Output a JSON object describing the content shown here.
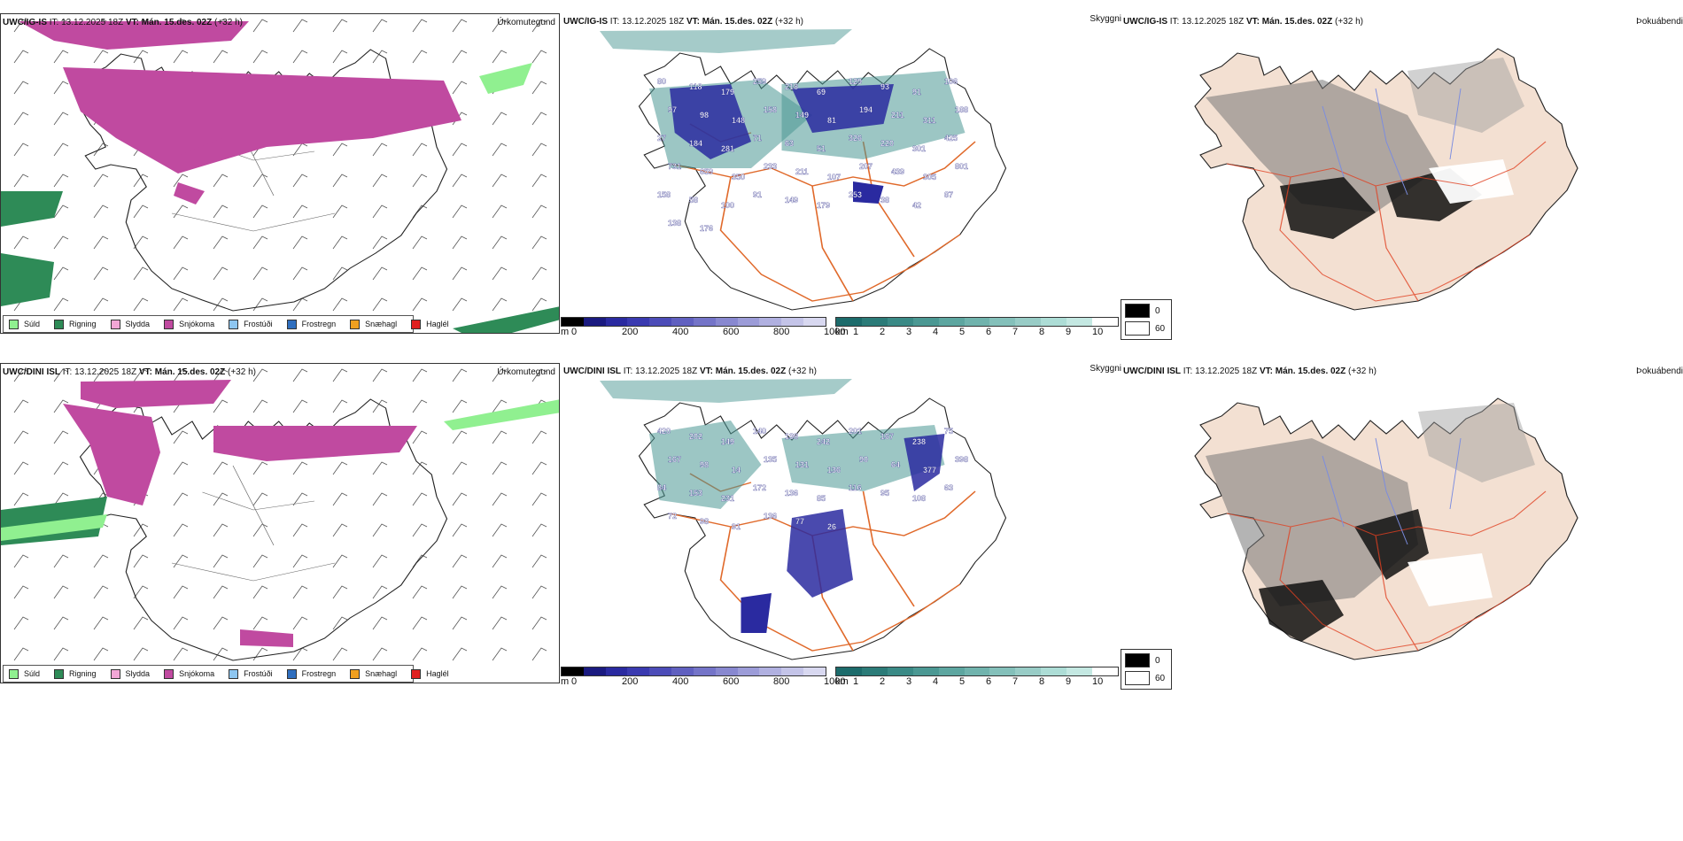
{
  "rows": [
    {
      "precip": {
        "model": "UWC/IG-IS",
        "it_label": "IT:",
        "it": "13.12.2025 18Z",
        "vt_label": "VT:",
        "vt": "Mán. 15.des. 02Z",
        "lead": "(+32 h)",
        "product": "Úrkomutegund"
      },
      "cloud": {
        "model": "UWC/IG-IS",
        "it_label": "IT:",
        "it": "13.12.2025 18Z",
        "vt_label": "VT:",
        "vt": "Mán. 15.des. 02Z",
        "lead": "(+32 h)",
        "product": "Skyggni",
        "labels": [
          "80",
          "118",
          "179",
          "259",
          "218",
          "69",
          "129",
          "93",
          "91",
          "106",
          "97",
          "98",
          "148",
          "158",
          "149",
          "81",
          "194",
          "211",
          "311",
          "188",
          "27",
          "184",
          "281",
          "71",
          "63",
          "51",
          "326",
          "220",
          "301",
          "425",
          "731",
          "659",
          "350",
          "233",
          "211",
          "107",
          "207",
          "439",
          "305",
          "801",
          "158",
          "58",
          "100",
          "91",
          "149",
          "179",
          "253",
          "38",
          "42",
          "87",
          "138",
          "176"
        ]
      },
      "fog": {
        "model": "UWC/IG-IS",
        "it_label": "IT:",
        "it": "13.12.2025 18Z",
        "vt_label": "VT:",
        "vt": "Mán. 15.des. 02Z",
        "lead": "(+32 h)",
        "product": "Þokuábendi"
      }
    },
    {
      "precip": {
        "model": "UWC/DINI ISL",
        "it_label": "IT:",
        "it": "13.12.2025 18Z",
        "vt_label": "VT:",
        "vt": "Mán. 15.des. 02Z",
        "lead": "(+32 h)",
        "product": "Úrkomutegund"
      },
      "cloud": {
        "model": "UWC/DINI ISL",
        "it_label": "IT:",
        "it": "13.12.2025 18Z",
        "vt_label": "VT:",
        "vt": "Mán. 15.des. 02Z",
        "lead": "(+32 h)",
        "product": "Skyggni",
        "labels": [
          "420",
          "202",
          "149",
          "140",
          "138",
          "242",
          "201",
          "167",
          "238",
          "75",
          "167",
          "98",
          "14",
          "135",
          "131",
          "136",
          "90",
          "64",
          "377",
          "398",
          "84",
          "153",
          "231",
          "172",
          "136",
          "85",
          "116",
          "95",
          "108",
          "63",
          "72",
          "98",
          "91",
          "136",
          "77",
          "26"
        ]
      },
      "fog": {
        "model": "UWC/DINI ISL",
        "it_label": "IT:",
        "it": "13.12.2025 18Z",
        "vt_label": "VT:",
        "vt": "Mán. 15.des. 02Z",
        "lead": "(+32 h)",
        "product": "Þokuábendi"
      }
    }
  ],
  "precip_legend": [
    {
      "label": "Súld",
      "color": "#90f090"
    },
    {
      "label": "Rigning",
      "color": "#2e8b57"
    },
    {
      "label": "Slydda",
      "color": "#f2a6d6"
    },
    {
      "label": "Snjókoma",
      "color": "#c04aa0"
    },
    {
      "label": "Frostúði",
      "color": "#8ec6f0"
    },
    {
      "label": "Frostregn",
      "color": "#2f6fbf"
    },
    {
      "label": "Snæhagl",
      "color": "#f0a020"
    },
    {
      "label": "Haglél",
      "color": "#e02020"
    }
  ],
  "ceiling_bar": {
    "unit": "m",
    "ticks": [
      "0",
      "200",
      "400",
      "600",
      "800",
      "1000"
    ],
    "colors": [
      "#000000",
      "#1a1a80",
      "#2a2aa0",
      "#3a3ab0",
      "#4c4cb8",
      "#6060c0",
      "#7474c8",
      "#8888d0",
      "#9c9cd8",
      "#b0b0e0",
      "#c4c4e8",
      "#d8d8f0"
    ]
  },
  "vis_bar": {
    "unit": "km",
    "ticks": [
      "1",
      "2",
      "3",
      "4",
      "5",
      "6",
      "7",
      "8",
      "9",
      "10"
    ],
    "colors": [
      "#1c6b6b",
      "#2b7b78",
      "#3a8a86",
      "#4b9893",
      "#5da6a0",
      "#70b3ad",
      "#84c0ba",
      "#98ccc6",
      "#adddd6",
      "#c4e8e2",
      "#ffffff"
    ]
  },
  "fog_legend": [
    {
      "label": "0",
      "color": "#000000"
    },
    {
      "label": "60",
      "color": "#ffffff"
    }
  ],
  "colors": {
    "iceland_fill": "#f3e0d2",
    "road": "#e0692a",
    "river": "#7a8ce0",
    "snow": "#c04aa0",
    "rain": "#2e8b57",
    "drizzle": "#90f090",
    "cloud_blue": "#2a2aa0",
    "cloud_teal": "#4b9893"
  }
}
